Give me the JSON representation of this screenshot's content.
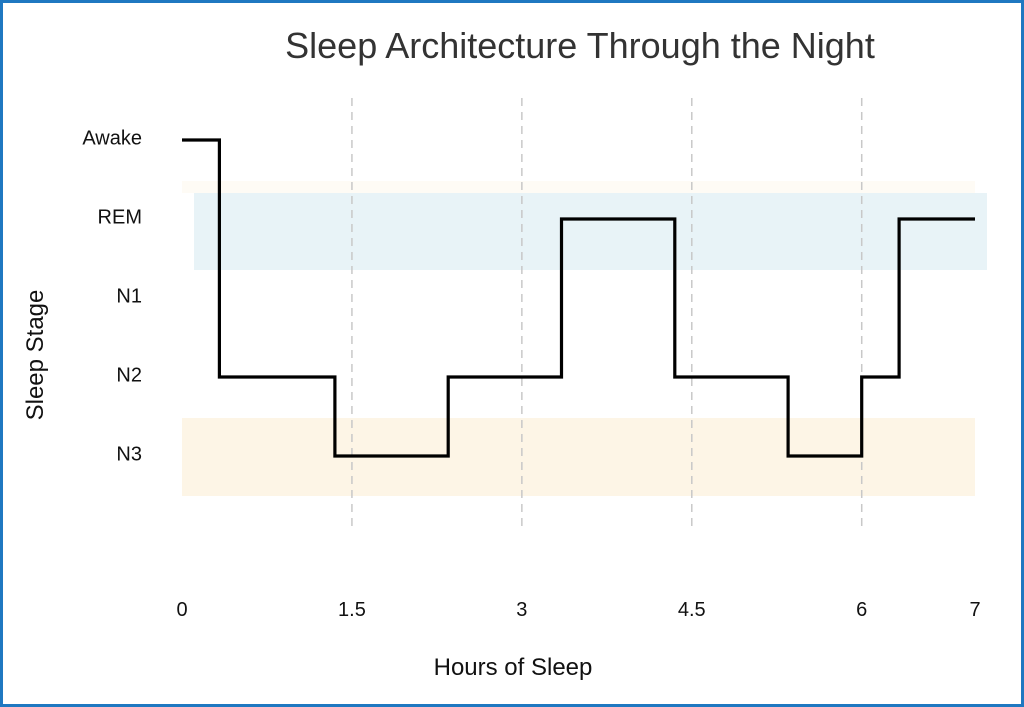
{
  "chart_data": {
    "type": "line",
    "step": true,
    "title": "Sleep Architecture Through the Night",
    "xlabel": "Hours of Sleep",
    "ylabel": "Sleep Stage",
    "xlim": [
      0,
      7
    ],
    "x_ticks": [
      0,
      1.5,
      3,
      4.5,
      6,
      7
    ],
    "y_categories": [
      "Awake",
      "REM",
      "N1",
      "N2",
      "N3"
    ],
    "grid": "vertical dashed at x ticks",
    "shaded_bands": [
      {
        "stage": "REM",
        "color": "#e8f3f7"
      },
      {
        "stage": "N3",
        "color": "#fdf5e6"
      }
    ],
    "series": [
      {
        "line_color": "#000000",
        "steps": [
          {
            "start": 0.0,
            "end": 0.33,
            "stage": "Awake"
          },
          {
            "start": 0.33,
            "end": 1.35,
            "stage": "N2"
          },
          {
            "start": 1.35,
            "end": 2.35,
            "stage": "N3"
          },
          {
            "start": 2.35,
            "end": 3.35,
            "stage": "N2"
          },
          {
            "start": 3.35,
            "end": 4.35,
            "stage": "REM"
          },
          {
            "start": 4.35,
            "end": 5.35,
            "stage": "N2"
          },
          {
            "start": 5.35,
            "end": 6.0,
            "stage": "N3"
          },
          {
            "start": 6.0,
            "end": 6.33,
            "stage": "N2"
          },
          {
            "start": 6.33,
            "end": 6.67,
            "stage": "REM"
          }
        ]
      }
    ]
  }
}
